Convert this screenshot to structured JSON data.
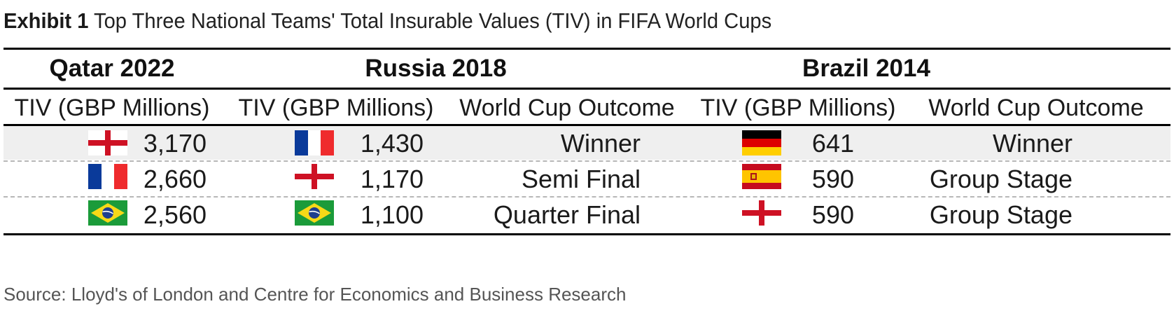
{
  "exhibit": {
    "label": "Exhibit 1",
    "title": "Top Three National Teams' Total Insurable Values (TIV) in FIFA World Cups"
  },
  "groups": [
    {
      "name": "Qatar 2022",
      "columns": {
        "tiv": "TIV (GBP Millions)"
      },
      "rows": [
        {
          "flag": "england-flag-icon",
          "tiv": "3,170"
        },
        {
          "flag": "france-flag-icon",
          "tiv": "2,660"
        },
        {
          "flag": "brazil-flag-icon",
          "tiv": "2,560"
        }
      ]
    },
    {
      "name": "Russia 2018",
      "columns": {
        "tiv": "TIV (GBP Millions)",
        "outcome": "World Cup Outcome"
      },
      "rows": [
        {
          "flag": "france-flag-icon",
          "tiv": "1,430",
          "outcome": "Winner"
        },
        {
          "flag": "england-flag-icon",
          "tiv": "1,170",
          "outcome": "Semi Final"
        },
        {
          "flag": "brazil-flag-icon",
          "tiv": "1,100",
          "outcome": "Quarter Final"
        }
      ]
    },
    {
      "name": "Brazil 2014",
      "columns": {
        "tiv": "TIV (GBP Millions)",
        "outcome": "World Cup Outcome"
      },
      "rows": [
        {
          "flag": "germany-flag-icon",
          "tiv": "641",
          "outcome": "Winner"
        },
        {
          "flag": "spain-flag-icon",
          "tiv": "590",
          "outcome": "Group Stage"
        },
        {
          "flag": "england-flag-icon",
          "tiv": "590",
          "outcome": "Group Stage"
        }
      ]
    }
  ],
  "source": "Source: Lloyd's of London and Centre for Economics and Business Research",
  "colors": {
    "england_red": "#ce1124",
    "france_blue": "#0a3a9a",
    "france_red": "#ef2b2d",
    "brazil_green": "#1b9b3a",
    "brazil_yellow": "#f7d917",
    "brazil_blue": "#1f3f8f",
    "germany_black": "#000000",
    "germany_red": "#dd0000",
    "germany_gold": "#ffce00",
    "spain_red": "#c60b1e",
    "spain_yellow": "#ffc400",
    "row_band": "#efefef"
  }
}
